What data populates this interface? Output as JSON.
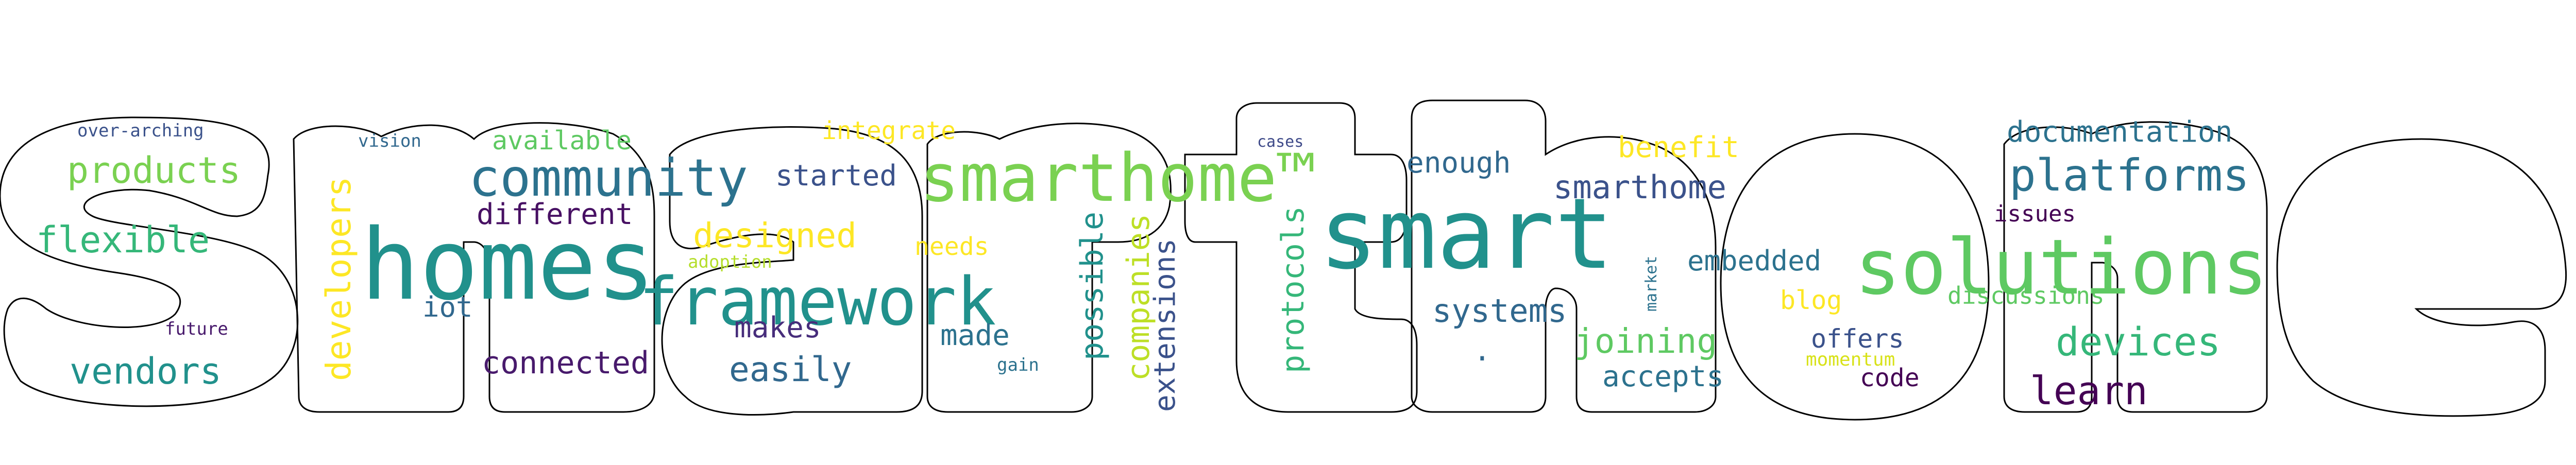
{
  "title_shape_text": "smarthome",
  "words": [
    {
      "text": "smart",
      "color": "#21918c"
    },
    {
      "text": "homes",
      "color": "#21918c"
    },
    {
      "text": "solutions",
      "color": "#5ec962"
    },
    {
      "text": "smarthome™",
      "color": "#7ad151"
    },
    {
      "text": "framework",
      "color": "#21918c"
    },
    {
      "text": "community",
      "color": "#2c728e"
    },
    {
      "text": "platforms",
      "color": "#2c728e"
    },
    {
      "text": "products",
      "color": "#7ad151"
    },
    {
      "text": "flexible",
      "color": "#35b779"
    },
    {
      "text": "vendors",
      "color": "#21918c"
    },
    {
      "text": "devices",
      "color": "#35b779"
    },
    {
      "text": "learn",
      "color": "#440154"
    },
    {
      "text": "joining",
      "color": "#5ec962"
    },
    {
      "text": "designed",
      "color": "#fde725"
    },
    {
      "text": "developers",
      "color": "#fde725"
    },
    {
      "text": "possible",
      "color": "#21918c"
    },
    {
      "text": "companies",
      "color": "#bddf26"
    },
    {
      "text": "protocols",
      "color": "#35b779"
    },
    {
      "text": "extensions",
      "color": "#3b528b"
    },
    {
      "text": "systems",
      "color": "#31688e"
    },
    {
      "text": "smarthome",
      "color": "#3b528b"
    },
    {
      "text": "documentation",
      "color": "#2c728e"
    },
    {
      "text": "easily",
      "color": "#31688e"
    },
    {
      "text": "connected",
      "color": "#481a6c"
    },
    {
      "text": "different",
      "color": "#471063"
    },
    {
      "text": "started",
      "color": "#3b528b"
    },
    {
      "text": "makes",
      "color": "#472d7b"
    },
    {
      "text": "made",
      "color": "#2c728e"
    },
    {
      "text": "enough",
      "color": "#31688e"
    },
    {
      "text": "benefit",
      "color": "#fde725"
    },
    {
      "text": "embedded",
      "color": "#2c728e"
    },
    {
      "text": "accepts",
      "color": "#2c728e"
    },
    {
      "text": "discussions",
      "color": "#5ec962"
    },
    {
      "text": "available",
      "color": "#5ec962"
    },
    {
      "text": "integrate",
      "color": "#fde725"
    },
    {
      "text": "iot",
      "color": "#31688e"
    },
    {
      "text": "needs",
      "color": "#fde725"
    },
    {
      "text": "issues",
      "color": "#440154"
    },
    {
      "text": "blog",
      "color": "#fde725"
    },
    {
      "text": "offers",
      "color": "#3b528b"
    },
    {
      "text": "code",
      "color": "#440154"
    },
    {
      "text": "over-arching",
      "color": "#3b528b"
    },
    {
      "text": "vision",
      "color": "#31688e"
    },
    {
      "text": "future",
      "color": "#481a6c"
    },
    {
      "text": "adoption",
      "color": "#b5de2b"
    },
    {
      "text": "gain",
      "color": "#2c728e"
    },
    {
      "text": "cases",
      "color": "#3e4a89"
    },
    {
      "text": "market",
      "color": "#2c728e"
    },
    {
      "text": "momentum",
      "color": "#d8e219"
    },
    {
      "text": ".",
      "color": "#31688e"
    }
  ]
}
